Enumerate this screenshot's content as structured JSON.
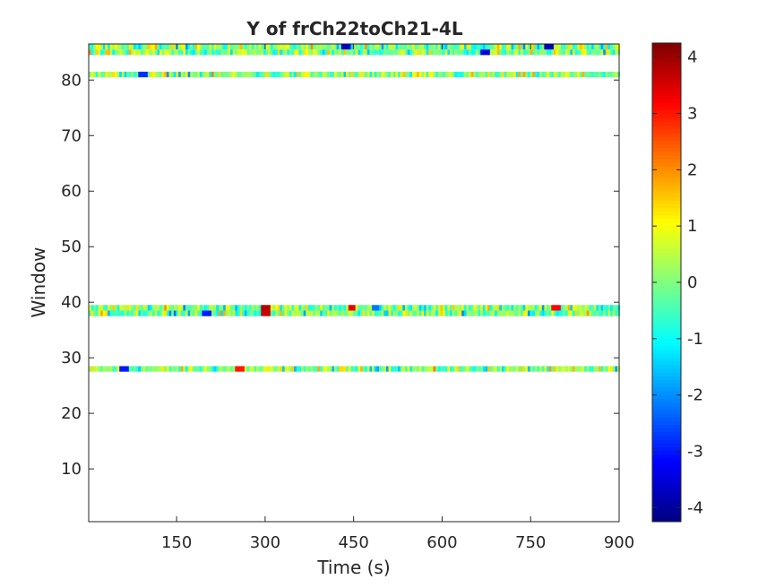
{
  "chart_data": {
    "type": "heatmap",
    "title": "Y of frCh22toCh21-4L",
    "xlabel": "Time (s)",
    "ylabel": "Window",
    "xlim": [
      1,
      900
    ],
    "ylim": [
      0.5,
      86.5
    ],
    "x_ticks": [
      150,
      300,
      450,
      600,
      750,
      900
    ],
    "y_ticks": [
      10,
      20,
      30,
      40,
      50,
      60,
      70,
      80
    ],
    "colorbar": {
      "colormap": "jet",
      "clim": [
        -4.25,
        4.25
      ],
      "ticks": [
        -4,
        -3,
        -2,
        -1,
        0,
        1,
        2,
        3,
        4
      ]
    },
    "grid": false,
    "filled_windows": [
      28,
      38,
      39,
      81,
      85,
      86
    ],
    "empty_windows_note": "",
    "notable_cells": [
      {
        "window": 39,
        "time": 300,
        "value": 3.8
      },
      {
        "window": 38,
        "time": 300,
        "value": 3.6
      },
      {
        "window": 39,
        "time": 445,
        "value": 3.4
      },
      {
        "window": 39,
        "time": 790,
        "value": 3.2
      },
      {
        "window": 38,
        "time": 200,
        "value": -3.0
      },
      {
        "window": 39,
        "time": 485,
        "value": -2.2
      },
      {
        "window": 86,
        "time": 435,
        "value": -3.6
      },
      {
        "window": 86,
        "time": 780,
        "value": -3.8
      },
      {
        "window": 85,
        "time": 670,
        "value": -3.5
      },
      {
        "window": 81,
        "time": 90,
        "value": -2.8
      },
      {
        "window": 28,
        "time": 60,
        "value": -3.0
      },
      {
        "window": 28,
        "time": 255,
        "value": 3.0
      }
    ]
  }
}
